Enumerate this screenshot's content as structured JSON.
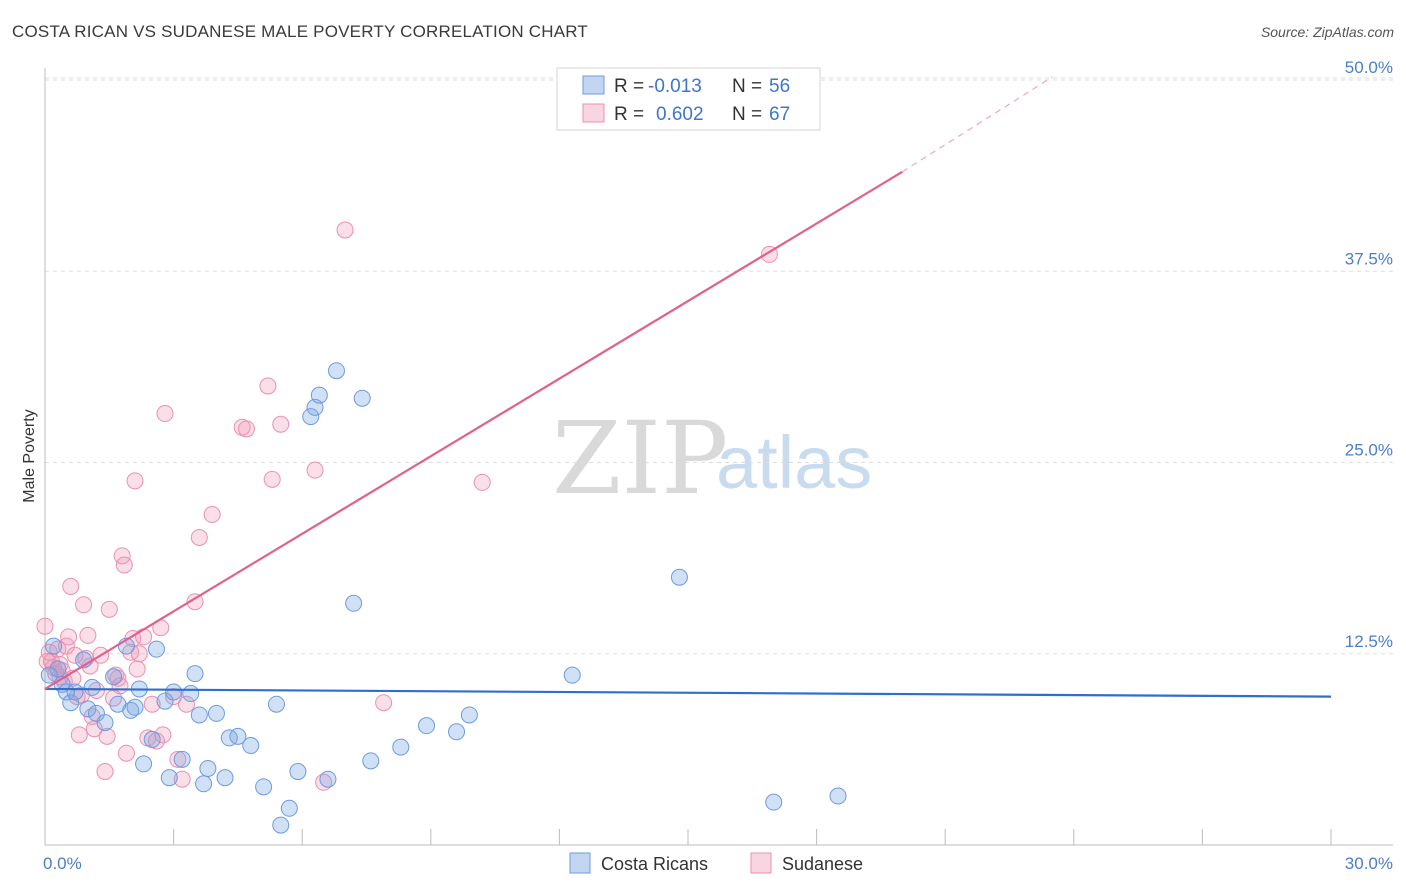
{
  "title": "COSTA RICAN VS SUDANESE MALE POVERTY CORRELATION CHART",
  "source": "Source: ZipAtlas.com",
  "watermark": {
    "zip": "ZIP",
    "atlas": "atlas"
  },
  "colors": {
    "costa_fill": "rgba(120,165,225,0.35)",
    "costa_stroke": "#6d9be0",
    "costa_line": "#2f6fcc",
    "sudan_fill": "rgba(240,150,180,0.30)",
    "sudan_stroke": "#ec8fb0",
    "sudan_line": "#e0608f",
    "tick_text": "#4a7fc8",
    "grid": "#dddddd"
  },
  "legend": {
    "r_label": "R =",
    "n_label": "N =",
    "rows": [
      {
        "series": "Costa Ricans",
        "r": "-0.013",
        "n": "56"
      },
      {
        "series": "Sudanese",
        "r": "0.602",
        "n": "67"
      }
    ]
  },
  "chart_data": {
    "type": "scatter",
    "title": "COSTA RICAN VS SUDANESE MALE POVERTY CORRELATION CHART",
    "xlabel": "",
    "ylabel": "Male Poverty",
    "xlim": [
      0,
      30
    ],
    "ylim": [
      0,
      51
    ],
    "x_tick_labels": [
      {
        "value": 0,
        "label": "0.0%"
      },
      {
        "value": 30,
        "label": "30.0%"
      }
    ],
    "y_tick_labels": [
      {
        "value": 12.5,
        "label": "12.5%"
      },
      {
        "value": 25,
        "label": "25.0%"
      },
      {
        "value": 37.5,
        "label": "37.5%"
      },
      {
        "value": 50,
        "label": "50.0%"
      }
    ],
    "x_minor_ticks": [
      0,
      3,
      6,
      9,
      12,
      15,
      18,
      21,
      24,
      27,
      30
    ],
    "series": [
      {
        "name": "Costa Ricans",
        "r": -0.013,
        "n": 56,
        "trend": {
          "x0": 0,
          "y0": 10.2,
          "x1": 30,
          "y1": 9.7
        },
        "points": [
          [
            0.2,
            13.0
          ],
          [
            0.3,
            11.5
          ],
          [
            0.4,
            10.5
          ],
          [
            0.5,
            10.0
          ],
          [
            0.6,
            9.3
          ],
          [
            0.7,
            10.0
          ],
          [
            0.9,
            12.1
          ],
          [
            1.0,
            8.9
          ],
          [
            1.1,
            10.3
          ],
          [
            1.2,
            8.6
          ],
          [
            1.4,
            8.0
          ],
          [
            1.6,
            11.0
          ],
          [
            1.7,
            9.2
          ],
          [
            1.9,
            13.0
          ],
          [
            2.0,
            8.8
          ],
          [
            2.1,
            9.0
          ],
          [
            2.2,
            10.2
          ],
          [
            2.3,
            5.3
          ],
          [
            2.5,
            6.9
          ],
          [
            2.6,
            12.8
          ],
          [
            2.8,
            9.4
          ],
          [
            2.9,
            4.4
          ],
          [
            3.0,
            10.0
          ],
          [
            3.2,
            5.6
          ],
          [
            3.4,
            9.9
          ],
          [
            3.5,
            11.2
          ],
          [
            3.6,
            8.5
          ],
          [
            3.7,
            4.0
          ],
          [
            3.8,
            5.0
          ],
          [
            4.0,
            8.6
          ],
          [
            4.2,
            4.4
          ],
          [
            4.3,
            7.0
          ],
          [
            4.5,
            7.1
          ],
          [
            4.8,
            6.5
          ],
          [
            5.1,
            3.8
          ],
          [
            5.4,
            9.2
          ],
          [
            5.5,
            1.3
          ],
          [
            5.7,
            2.4
          ],
          [
            5.9,
            4.8
          ],
          [
            6.2,
            28.0
          ],
          [
            6.3,
            28.6
          ],
          [
            6.4,
            29.4
          ],
          [
            6.6,
            4.3
          ],
          [
            6.8,
            31.0
          ],
          [
            7.2,
            15.8
          ],
          [
            7.4,
            29.2
          ],
          [
            7.6,
            5.5
          ],
          [
            8.3,
            6.4
          ],
          [
            8.9,
            7.8
          ],
          [
            9.6,
            7.4
          ],
          [
            9.9,
            8.5
          ],
          [
            12.3,
            11.1
          ],
          [
            14.8,
            17.5
          ],
          [
            17.0,
            2.8
          ],
          [
            18.5,
            3.2
          ],
          [
            0.1,
            11.1
          ]
        ]
      },
      {
        "name": "Sudanese",
        "r": 0.602,
        "n": 67,
        "trend": {
          "x0": 0,
          "y0": 10.2,
          "x1": 20,
          "y1": 44.0
        },
        "trend_dashed": {
          "x0": 20,
          "y0": 44.0,
          "x1": 23.5,
          "y1": 50.2
        },
        "points": [
          [
            0.0,
            14.3
          ],
          [
            0.1,
            12.6
          ],
          [
            0.15,
            12.0
          ],
          [
            0.2,
            11.6
          ],
          [
            0.25,
            11.2
          ],
          [
            0.3,
            12.8
          ],
          [
            0.35,
            11.8
          ],
          [
            0.4,
            11.4
          ],
          [
            0.45,
            10.7
          ],
          [
            0.5,
            13.0
          ],
          [
            0.55,
            13.6
          ],
          [
            0.6,
            16.9
          ],
          [
            0.65,
            10.9
          ],
          [
            0.7,
            12.4
          ],
          [
            0.75,
            9.7
          ],
          [
            0.8,
            7.2
          ],
          [
            0.85,
            9.8
          ],
          [
            0.9,
            15.7
          ],
          [
            0.95,
            12.2
          ],
          [
            1.0,
            13.7
          ],
          [
            1.05,
            11.7
          ],
          [
            1.1,
            8.4
          ],
          [
            1.15,
            7.6
          ],
          [
            1.2,
            10.1
          ],
          [
            1.3,
            12.4
          ],
          [
            1.4,
            4.8
          ],
          [
            1.45,
            7.1
          ],
          [
            1.5,
            15.4
          ],
          [
            1.6,
            9.6
          ],
          [
            1.65,
            11.1
          ],
          [
            1.7,
            10.9
          ],
          [
            1.8,
            18.9
          ],
          [
            1.85,
            18.3
          ],
          [
            1.9,
            6.0
          ],
          [
            2.0,
            12.6
          ],
          [
            2.05,
            13.5
          ],
          [
            2.1,
            23.8
          ],
          [
            2.15,
            11.5
          ],
          [
            2.2,
            12.5
          ],
          [
            2.3,
            13.6
          ],
          [
            2.4,
            7.0
          ],
          [
            2.5,
            9.2
          ],
          [
            2.6,
            6.8
          ],
          [
            2.7,
            14.2
          ],
          [
            2.75,
            7.2
          ],
          [
            2.8,
            28.2
          ],
          [
            3.0,
            9.7
          ],
          [
            3.1,
            5.6
          ],
          [
            3.2,
            4.3
          ],
          [
            3.3,
            9.2
          ],
          [
            3.5,
            15.9
          ],
          [
            3.6,
            20.1
          ],
          [
            3.9,
            21.6
          ],
          [
            4.6,
            27.3
          ],
          [
            4.7,
            27.2
          ],
          [
            5.2,
            30.0
          ],
          [
            5.3,
            23.9
          ],
          [
            5.5,
            27.5
          ],
          [
            6.3,
            24.5
          ],
          [
            6.5,
            4.1
          ],
          [
            7.0,
            40.2
          ],
          [
            7.9,
            9.3
          ],
          [
            10.2,
            23.7
          ],
          [
            16.9,
            38.6
          ],
          [
            0.05,
            12.0
          ],
          [
            0.35,
            11.0
          ],
          [
            1.75,
            10.4
          ]
        ]
      }
    ],
    "legend_position": "top-center",
    "grid": true
  },
  "bottom_legend": [
    {
      "label": "Costa Ricans"
    },
    {
      "label": "Sudanese"
    }
  ]
}
